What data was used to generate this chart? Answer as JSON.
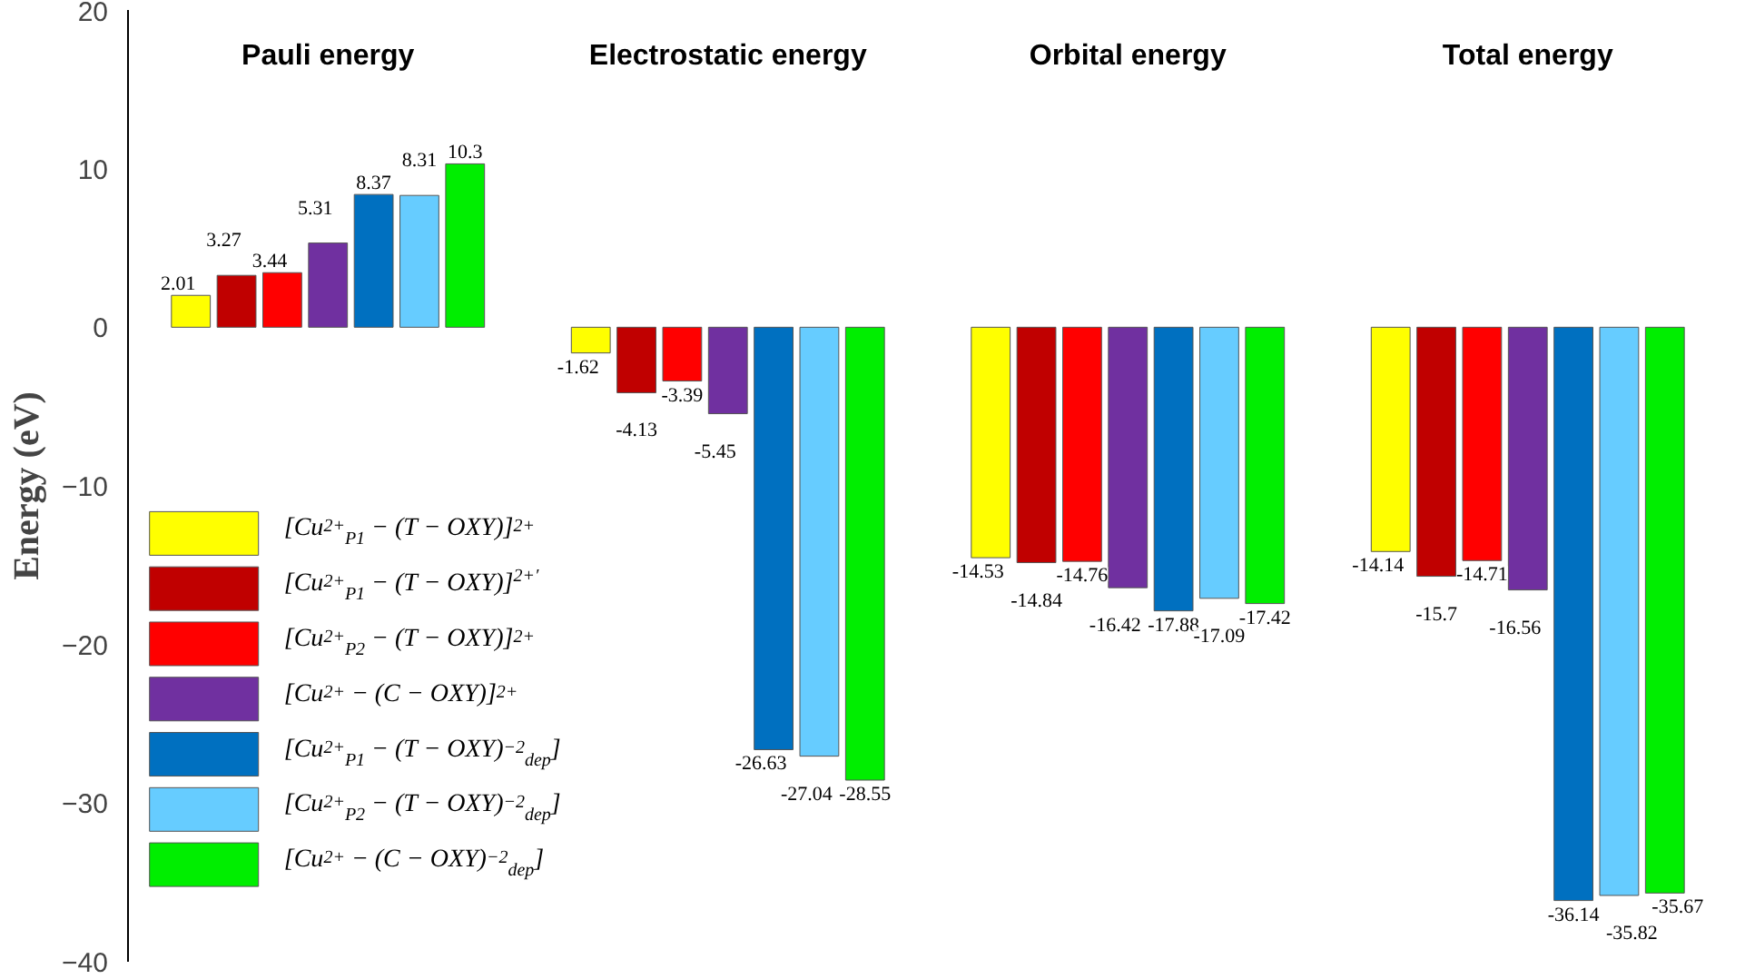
{
  "chart_data": {
    "type": "bar",
    "ylabel": "Energy (eV)",
    "categories": [
      "Pauli energy",
      "Electrostatic energy",
      "Orbital energy",
      "Total energy"
    ],
    "series": [
      {
        "name": "[Cu$^{2+}$$_{P1}$ − (T − OXY)]$^{2+}$",
        "color": "#ffff00",
        "values": [
          2.01,
          -1.62,
          -14.53,
          -14.14
        ]
      },
      {
        "name": "[Cu$^{2+}$$_{P1}$ − (T − OXY)]$^{2+′}$",
        "color": "#c00000",
        "values": [
          3.27,
          -4.13,
          -14.84,
          -15.7
        ]
      },
      {
        "name": "[Cu$^{2+}$$_{P2}$ − (T − OXY)]$^{2+}$",
        "color": "#ff0000",
        "values": [
          3.44,
          -3.39,
          -14.76,
          -14.71
        ]
      },
      {
        "name": "[Cu$^{2+}$ − (C − OXY)]$^{2+}$",
        "color": "#7030a0",
        "values": [
          5.31,
          -5.45,
          -16.42,
          -16.56
        ]
      },
      {
        "name": "[Cu$^{2+}$$_{P1}$ − (T − OXY)$^{−2}$$_{dep}$]",
        "color": "#0070c0",
        "values": [
          8.37,
          -26.63,
          -17.88,
          -36.14
        ]
      },
      {
        "name": "[Cu$^{2+}$$_{P2}$ − (T − OXY)$^{−2}$$_{dep}$]",
        "color": "#66ccff",
        "values": [
          8.31,
          -27.04,
          -17.09,
          -35.82
        ]
      },
      {
        "name": "[Cu$^{2+}$ − (C − OXY)$^{−2}$$_{dep}$]",
        "color": "#00ee00",
        "values": [
          10.3,
          -28.55,
          -17.42,
          -35.67
        ]
      }
    ],
    "ylim": [
      -40,
      20
    ],
    "yticks": [
      -40,
      -30,
      -20,
      -10,
      0,
      10,
      20
    ],
    "data_labels": true,
    "legend": "bottom left",
    "grid": false
  }
}
